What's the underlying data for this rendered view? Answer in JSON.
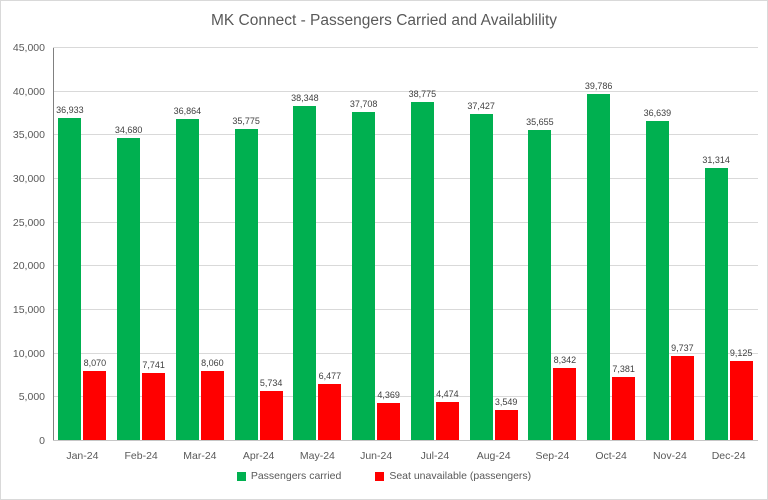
{
  "chart_data": {
    "type": "bar",
    "title": "MK Connect - Passengers Carried and Availablility",
    "categories": [
      "Jan-24",
      "Feb-24",
      "Mar-24",
      "Apr-24",
      "May-24",
      "Jun-24",
      "Jul-24",
      "Aug-24",
      "Sep-24",
      "Oct-24",
      "Nov-24",
      "Dec-24"
    ],
    "series": [
      {
        "name": "Passengers carried",
        "color": "#00B050",
        "values": [
          36933,
          34680,
          36864,
          35775,
          38348,
          37708,
          38775,
          37427,
          35655,
          39786,
          36639,
          31314
        ],
        "value_labels": [
          "36,933",
          "34,680",
          "36,864",
          "35,775",
          "38,348",
          "37,708",
          "38,775",
          "37,427",
          "35,655",
          "39,786",
          "36,639",
          "31,314"
        ]
      },
      {
        "name": "Seat unavailable (passengers)",
        "color": "#FF0000",
        "values": [
          8070,
          7741,
          8060,
          5734,
          6477,
          4369,
          4474,
          3549,
          8342,
          7381,
          9737,
          9125
        ],
        "value_labels": [
          "8,070",
          "7,741",
          "8,060",
          "5,734",
          "6,477",
          "4,369",
          "4,474",
          "3,549",
          "8,342",
          "7,381",
          "9,737",
          "9,125"
        ]
      }
    ],
    "ylim": [
      0,
      45000
    ],
    "ytick_step": 5000,
    "ytick_labels": [
      "0",
      "5,000",
      "10,000",
      "15,000",
      "20,000",
      "25,000",
      "30,000",
      "35,000",
      "40,000",
      "45,000"
    ],
    "grid": true,
    "legend_position": "bottom",
    "colors": {
      "grid": "#D9D9D9",
      "axis": "#808080",
      "axis_text": "#595959",
      "data_label": "#404040"
    }
  }
}
